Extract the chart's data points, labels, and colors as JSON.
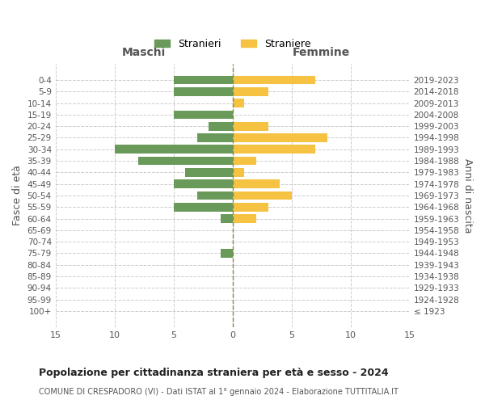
{
  "age_groups": [
    "100+",
    "95-99",
    "90-94",
    "85-89",
    "80-84",
    "75-79",
    "70-74",
    "65-69",
    "60-64",
    "55-59",
    "50-54",
    "45-49",
    "40-44",
    "35-39",
    "30-34",
    "25-29",
    "20-24",
    "15-19",
    "10-14",
    "5-9",
    "0-4"
  ],
  "birth_years": [
    "≤ 1923",
    "1924-1928",
    "1929-1933",
    "1934-1938",
    "1939-1943",
    "1944-1948",
    "1949-1953",
    "1954-1958",
    "1959-1963",
    "1964-1968",
    "1969-1973",
    "1974-1978",
    "1979-1983",
    "1984-1988",
    "1989-1993",
    "1994-1998",
    "1999-2003",
    "2004-2008",
    "2009-2013",
    "2014-2018",
    "2019-2023"
  ],
  "males": [
    0,
    0,
    0,
    0,
    0,
    1,
    0,
    0,
    1,
    5,
    3,
    5,
    4,
    8,
    10,
    3,
    2,
    5,
    0,
    5,
    5
  ],
  "females": [
    0,
    0,
    0,
    0,
    0,
    0,
    0,
    0,
    2,
    3,
    5,
    4,
    1,
    2,
    7,
    8,
    3,
    0,
    1,
    3,
    7
  ],
  "male_color": "#6a9a5a",
  "female_color": "#f5c242",
  "background_color": "#ffffff",
  "grid_color": "#cccccc",
  "title": "Popolazione per cittadinanza straniera per età e sesso - 2024",
  "subtitle": "COMUNE DI CRESPADORO (VI) - Dati ISTAT al 1° gennaio 2024 - Elaborazione TUTTITALIA.IT",
  "left_label": "Maschi",
  "right_label": "Femmine",
  "ylabel_left": "Fasce di età",
  "ylabel_right": "Anni di nascita",
  "legend_male": "Stranieri",
  "legend_female": "Straniere",
  "xlim": 15,
  "tick_labels": [
    "15",
    "10",
    "5",
    "0",
    "5",
    "10",
    "15"
  ]
}
